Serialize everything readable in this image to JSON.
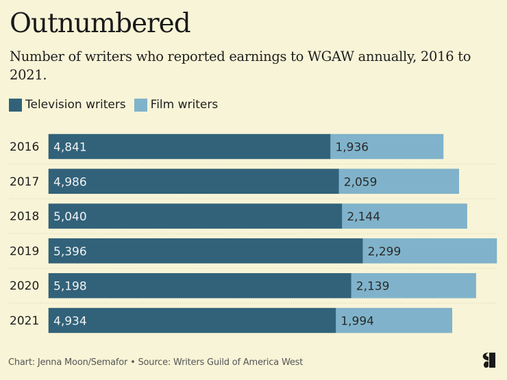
{
  "header": {
    "title": "Outnumbered",
    "subtitle": "Number of writers who reported earnings to WGAW annually, 2016 to 2021."
  },
  "legend": [
    {
      "label": "Television writers",
      "color": "#31627a"
    },
    {
      "label": "Film writers",
      "color": "#80b3cb"
    }
  ],
  "footer": {
    "credit": "Chart: Jenna Moon/Semafor • Source: Writers Guild of America West",
    "logo": "semafor-logo"
  },
  "chart_data": {
    "type": "bar",
    "orientation": "horizontal",
    "stacked": true,
    "title": "Outnumbered",
    "subtitle": "Number of writers who reported earnings to WGAW annually, 2016 to 2021.",
    "xlabel": "",
    "ylabel": "",
    "categories": [
      "2016",
      "2017",
      "2018",
      "2019",
      "2020",
      "2021"
    ],
    "series": [
      {
        "name": "Television writers",
        "color": "#31627a",
        "label_color": "#f2f2f2",
        "values": [
          4841,
          4986,
          5040,
          5396,
          5198,
          4934
        ],
        "labels": [
          "4,841",
          "4,986",
          "5,040",
          "5,396",
          "5,198",
          "4,934"
        ]
      },
      {
        "name": "Film writers",
        "color": "#80b3cb",
        "label_color": "#2a2a2a",
        "values": [
          1936,
          2059,
          2144,
          2299,
          2139,
          1994
        ],
        "labels": [
          "1,936",
          "2,059",
          "2,144",
          "2,299",
          "2,139",
          "1,994"
        ]
      }
    ],
    "xlim": [
      0,
      7695
    ],
    "grid": "dotted row separators",
    "legend_position": "top-left",
    "axis_ticks_visible": false
  }
}
